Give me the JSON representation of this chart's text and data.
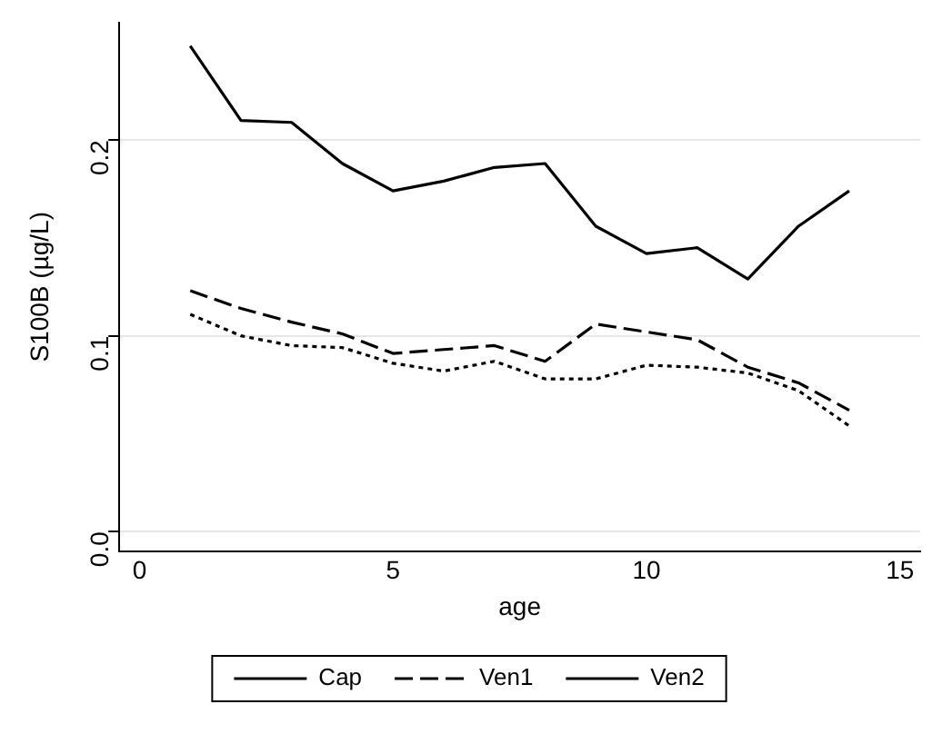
{
  "chart_data": {
    "type": "line",
    "xlabel": "age",
    "ylabel": "S100B (µg/L)",
    "x": [
      1,
      2,
      3,
      4,
      5,
      6,
      7,
      8,
      9,
      10,
      11,
      12,
      13,
      14
    ],
    "series": [
      {
        "name": "Cap",
        "color": "#000000",
        "line_style": "solid",
        "values": [
          0.248,
          0.21,
          0.209,
          0.188,
          0.174,
          0.179,
          0.186,
          0.188,
          0.156,
          0.142,
          0.145,
          0.129,
          0.156,
          0.174
        ]
      },
      {
        "name": "Ven1",
        "color": "#000000",
        "line_style": "dashed",
        "values": [
          0.123,
          0.114,
          0.107,
          0.101,
          0.091,
          0.093,
          0.095,
          0.087,
          0.106,
          0.102,
          0.098,
          0.084,
          0.076,
          0.062
        ]
      },
      {
        "name": "Ven2",
        "color": "#000000",
        "line_style": "dotted",
        "values": [
          0.111,
          0.1,
          0.095,
          0.094,
          0.086,
          0.082,
          0.087,
          0.078,
          0.078,
          0.085,
          0.084,
          0.081,
          0.072,
          0.054
        ]
      }
    ],
    "xlim": [
      -0.4,
      15.4
    ],
    "xticks": [
      0,
      5,
      10,
      15
    ],
    "ylim": [
      -0.01,
      0.26
    ],
    "yticks": [
      {
        "value": 0,
        "label": "0.0"
      },
      {
        "value": 0.1,
        "label": "0.1"
      },
      {
        "value": 0.2,
        "label": "0.2"
      }
    ],
    "grid": "y",
    "legend": "bottom",
    "marker": "none"
  }
}
